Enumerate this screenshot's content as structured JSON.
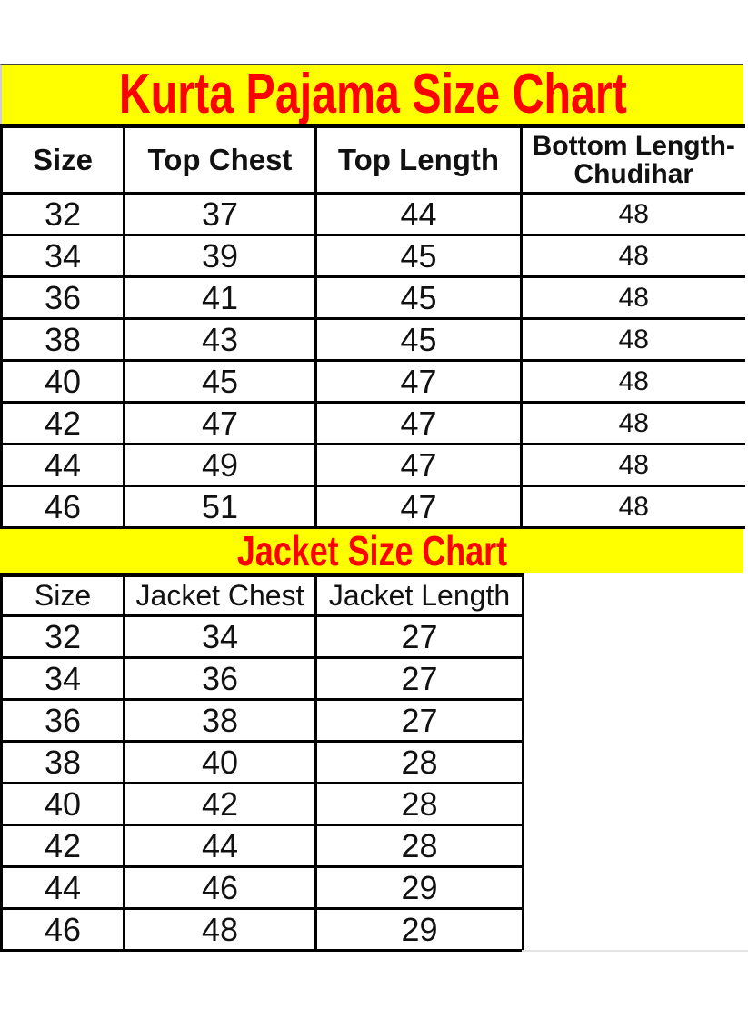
{
  "chart_data": [
    {
      "type": "table",
      "title": "Kurta Pajama Size Chart",
      "columns": [
        "Size",
        "Top Chest",
        "Top Length",
        "Bottom Length-Chudihar"
      ],
      "rows": [
        [
          32,
          37,
          44,
          48
        ],
        [
          34,
          39,
          45,
          48
        ],
        [
          36,
          41,
          45,
          48
        ],
        [
          38,
          43,
          45,
          48
        ],
        [
          40,
          45,
          47,
          48
        ],
        [
          42,
          47,
          47,
          48
        ],
        [
          44,
          49,
          47,
          48
        ],
        [
          46,
          51,
          47,
          48
        ]
      ]
    },
    {
      "type": "table",
      "title": "Jacket Size Chart",
      "columns": [
        "Size",
        "Jacket Chest",
        "Jacket Length"
      ],
      "rows": [
        [
          32,
          34,
          27
        ],
        [
          34,
          36,
          27
        ],
        [
          36,
          38,
          27
        ],
        [
          38,
          40,
          28
        ],
        [
          40,
          42,
          28
        ],
        [
          42,
          44,
          28
        ],
        [
          44,
          46,
          29
        ],
        [
          46,
          48,
          29
        ]
      ]
    }
  ],
  "colors": {
    "banner_background": "#ffff00",
    "banner_text": "#ff0000",
    "table_border": "#000000",
    "cell_text": "#111111",
    "page_background": "#ffffff"
  }
}
